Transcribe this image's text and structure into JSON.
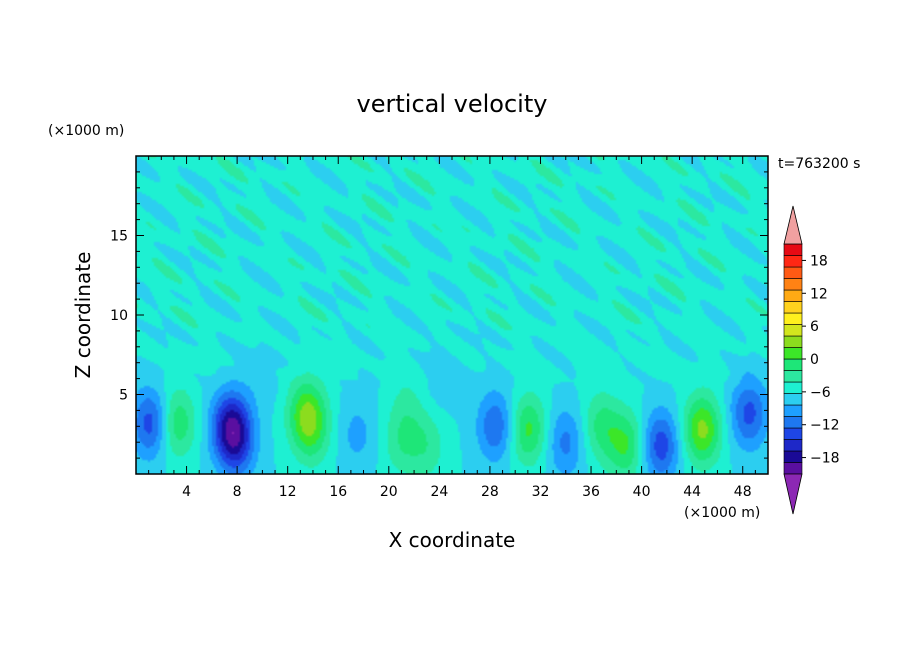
{
  "chart_data": {
    "type": "heatmap",
    "title": "vertical velocity",
    "xlabel": "X coordinate",
    "ylabel": "Z coordinate",
    "x_unit": "(×1000 m)",
    "y_unit": "(×1000 m)",
    "time_label": "t=763200 s",
    "xlim": [
      0,
      50
    ],
    "ylim": [
      0,
      20
    ],
    "x_ticks": [
      4,
      8,
      12,
      16,
      20,
      24,
      28,
      32,
      36,
      40,
      44,
      48
    ],
    "y_ticks": [
      5,
      10,
      15
    ],
    "colorbar": {
      "min": -21,
      "max": 21,
      "step": 3,
      "tick_values": [
        18,
        12,
        6,
        0,
        -6,
        -12,
        -18
      ],
      "tick_labels": [
        "18",
        "12",
        "6",
        "0",
        "−6",
        "−12",
        "−18"
      ],
      "extend": "both",
      "colors": [
        "#5a0fa0",
        "#1a0a96",
        "#1e28c8",
        "#1e46e6",
        "#1e78f0",
        "#1ea0ff",
        "#2ccef0",
        "#1ef0d2",
        "#2ce8a0",
        "#1ee678",
        "#3ce628",
        "#8cdc1e",
        "#d2e61e",
        "#fff01e",
        "#ffd21e",
        "#ffaa14",
        "#ff8214",
        "#ff5a14",
        "#ff2814",
        "#e60a14"
      ],
      "over_color": "#f0a0a0",
      "under_color": "#8c28b4"
    },
    "features": [
      {
        "x": 1.2,
        "z": 3.2,
        "amp": -11
      },
      {
        "x": 3.2,
        "z": 3.2,
        "amp": 9
      },
      {
        "x": 7.5,
        "z": 3.0,
        "amp": -15
      },
      {
        "x": 8.0,
        "z": 1.8,
        "amp": -8
      },
      {
        "x": 13.5,
        "z": 3.8,
        "amp": 11
      },
      {
        "x": 14.0,
        "z": 2.5,
        "amp": 5
      },
      {
        "x": 17.5,
        "z": 2.5,
        "amp": -4
      },
      {
        "x": 21.0,
        "z": 2.0,
        "amp": 5
      },
      {
        "x": 23.0,
        "z": 1.8,
        "amp": 5
      },
      {
        "x": 21.5,
        "z": 4.5,
        "amp": 3
      },
      {
        "x": 28.5,
        "z": 3.0,
        "amp": -9
      },
      {
        "x": 31.0,
        "z": 2.8,
        "amp": 10
      },
      {
        "x": 34.0,
        "z": 2.0,
        "amp": -7
      },
      {
        "x": 36.8,
        "z": 3.0,
        "amp": 7
      },
      {
        "x": 38.8,
        "z": 1.8,
        "amp": 9
      },
      {
        "x": 41.5,
        "z": 1.8,
        "amp": -11
      },
      {
        "x": 44.8,
        "z": 2.8,
        "amp": 13
      },
      {
        "x": 48.5,
        "z": 3.8,
        "amp": -10
      },
      {
        "x": 24.0,
        "z": 6.0,
        "amp": -2
      },
      {
        "x": 10.0,
        "z": 6.5,
        "amp": -2
      }
    ],
    "grid": false,
    "legend_position": "right"
  }
}
